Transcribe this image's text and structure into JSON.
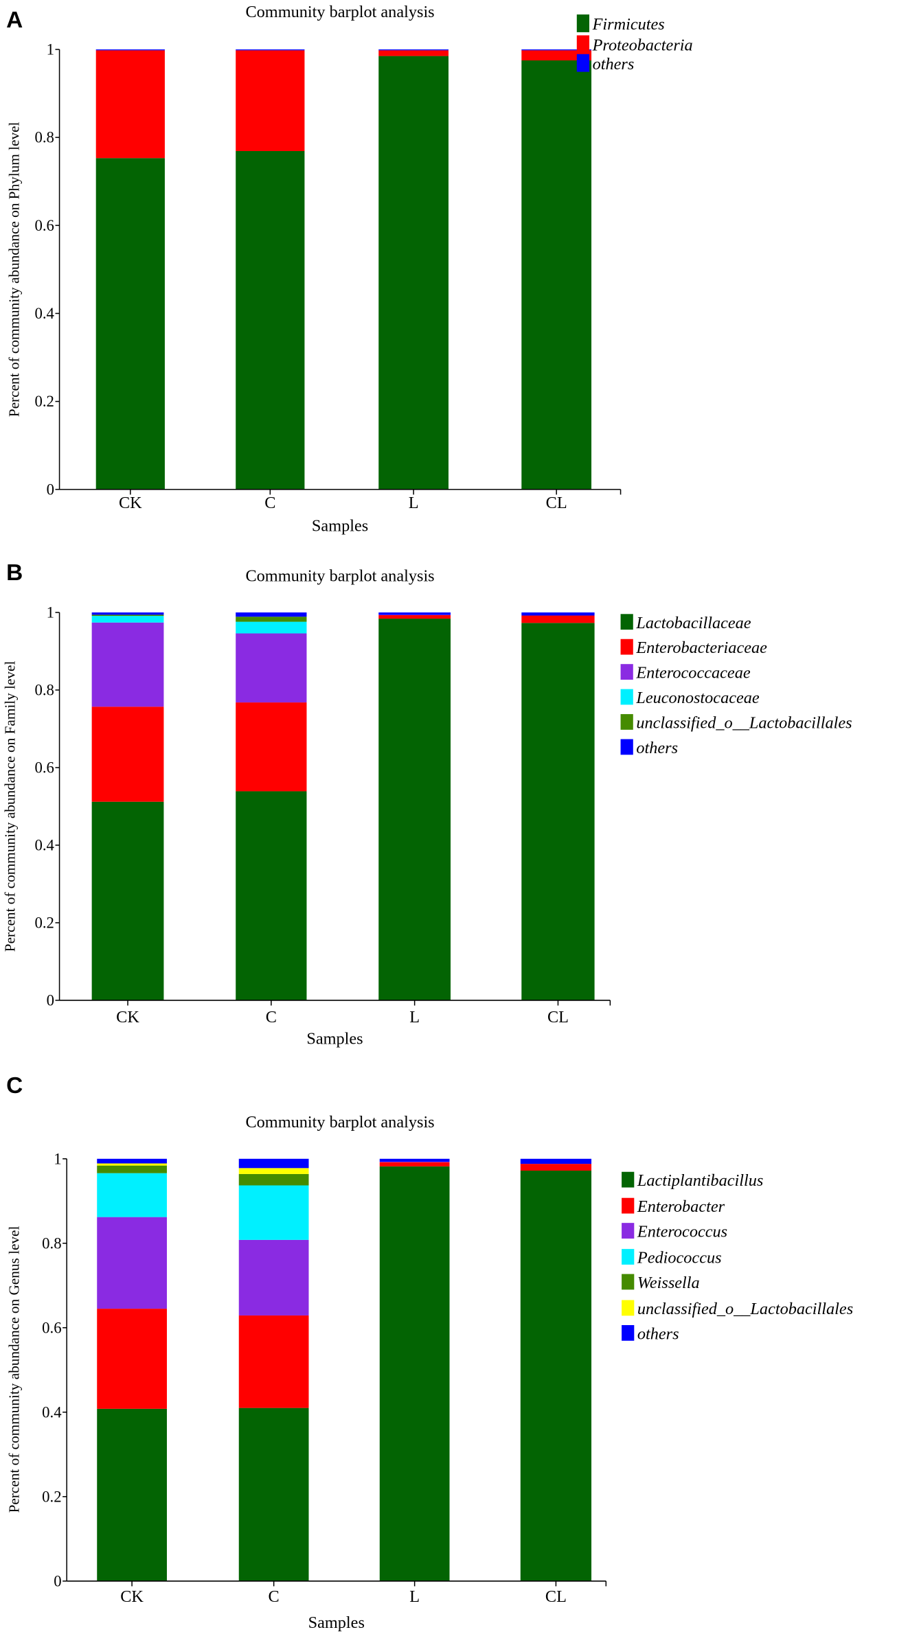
{
  "chart_data": [
    {
      "panel_label": "A",
      "type": "bar",
      "stacked": true,
      "title": "Community barplot analysis",
      "xlabel": "Samples",
      "ylabel": "Percent of community abundance on Phylum level",
      "categories": [
        "CK",
        "C",
        "L",
        "CL"
      ],
      "ylim": [
        0,
        1
      ],
      "yticks": [
        "0",
        "0.2",
        "0.4",
        "0.6",
        "0.8",
        "1"
      ],
      "grid": false,
      "legend_position": "top-right",
      "series": [
        {
          "name": "Firmicutes",
          "color": "#036403",
          "values": [
            0.753,
            0.769,
            0.985,
            0.975
          ]
        },
        {
          "name": "Proteobacteria",
          "color": "#ff0000",
          "values": [
            0.245,
            0.229,
            0.013,
            0.023
          ]
        },
        {
          "name": "others",
          "color": "#0000ff",
          "values": [
            0.002,
            0.002,
            0.002,
            0.002
          ]
        }
      ]
    },
    {
      "panel_label": "B",
      "type": "bar",
      "stacked": true,
      "title": "Community barplot analysis",
      "xlabel": "Samples",
      "ylabel": "Percent of community abundance on Family level",
      "categories": [
        "CK",
        "C",
        "L",
        "CL"
      ],
      "ylim": [
        0,
        1
      ],
      "yticks": [
        "0",
        "0.2",
        "0.4",
        "0.6",
        "0.8",
        "1"
      ],
      "grid": false,
      "legend_position": "top-right",
      "series": [
        {
          "name": "Lactobacillaceae",
          "color": "#036403",
          "values": [
            0.512,
            0.539,
            0.984,
            0.973
          ]
        },
        {
          "name": "Enterobacteriaceae",
          "color": "#ff0000",
          "values": [
            0.245,
            0.229,
            0.009,
            0.019
          ]
        },
        {
          "name": "Enterococcaceae",
          "color": "#8a2be2",
          "values": [
            0.217,
            0.178,
            0.001,
            0.0
          ]
        },
        {
          "name": "Leuconostocaceae",
          "color": "#00f0ff",
          "values": [
            0.017,
            0.03,
            0.0,
            0.0
          ]
        },
        {
          "name": "unclassified_o__Lactobacillales",
          "color": "#458b00",
          "values": [
            0.003,
            0.013,
            0.0,
            0.0
          ]
        },
        {
          "name": "others",
          "color": "#0000ff",
          "values": [
            0.006,
            0.011,
            0.006,
            0.008
          ]
        }
      ]
    },
    {
      "panel_label": "C",
      "type": "bar",
      "stacked": true,
      "title": "Community barplot analysis",
      "xlabel": "Samples",
      "ylabel": "Percent of community abundance on Genus level",
      "categories": [
        "CK",
        "C",
        "L",
        "CL"
      ],
      "ylim": [
        0,
        1
      ],
      "yticks": [
        "0",
        "0.2",
        "0.4",
        "0.6",
        "0.8",
        "1"
      ],
      "grid": false,
      "legend_position": "top-right",
      "series": [
        {
          "name": "Lactiplantibacillus",
          "color": "#036403",
          "values": [
            0.408,
            0.41,
            0.982,
            0.972
          ]
        },
        {
          "name": "Enterobacter",
          "color": "#ff0000",
          "values": [
            0.237,
            0.219,
            0.01,
            0.016
          ]
        },
        {
          "name": "Enterococcus",
          "color": "#8a2be2",
          "values": [
            0.217,
            0.179,
            0.001,
            0.0
          ]
        },
        {
          "name": "Pediococcus",
          "color": "#00f0ff",
          "values": [
            0.104,
            0.129,
            0.0,
            0.0
          ]
        },
        {
          "name": "Weissella",
          "color": "#458b00",
          "values": [
            0.018,
            0.027,
            0.0,
            0.0
          ]
        },
        {
          "name": "unclassified_o__Lactobacillales",
          "color": "#ffff00",
          "values": [
            0.005,
            0.014,
            0.0,
            0.0
          ]
        },
        {
          "name": "others",
          "color": "#0000ff",
          "values": [
            0.011,
            0.022,
            0.007,
            0.012
          ]
        }
      ]
    }
  ]
}
